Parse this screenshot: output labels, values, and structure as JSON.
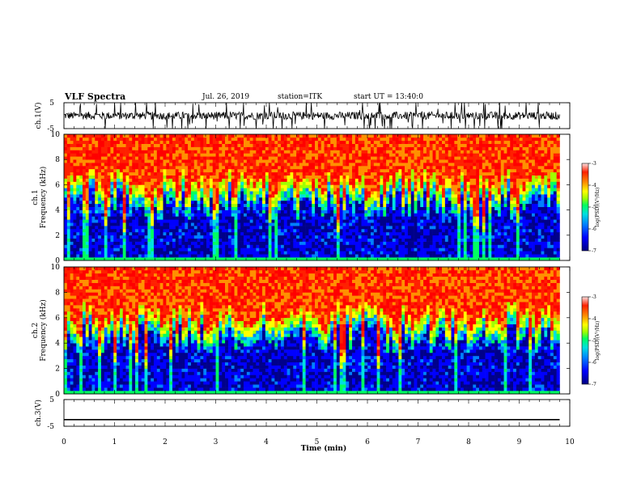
{
  "header": {
    "title": "VLF Spectra",
    "date": "Jul. 26, 2019",
    "station": "station=ITK",
    "start": "start UT = 13:40:0"
  },
  "chart_data": [
    {
      "type": "line",
      "name": "ch1-waveform",
      "ylabel": "ch.1(V)",
      "ylim": [
        -5,
        5
      ],
      "yticks": [
        "5",
        "-5"
      ],
      "xlim": [
        0,
        10
      ],
      "trace_level": 0,
      "noise_amplitude": 0.5,
      "spike_count": 60,
      "trace_end": 9.8
    },
    {
      "type": "heatmap",
      "name": "ch1-spectrogram",
      "ylabel": "ch.1\nFrequency (kHz)",
      "ylim": [
        0,
        10
      ],
      "yticks": [
        "0",
        "2",
        "4",
        "6",
        "8",
        "10"
      ],
      "xlim": [
        0,
        10
      ],
      "data_end_min": 9.8,
      "colorbar": {
        "label": "log(PSD)(V²/Hz)",
        "range": [
          -7,
          -3
        ],
        "ticks": [
          "-3",
          "-4",
          "-5",
          "-6",
          "-7"
        ]
      }
    },
    {
      "type": "heatmap",
      "name": "ch2-spectrogram",
      "ylabel": "ch.2\nFrequency (kHz)",
      "ylim": [
        0,
        10
      ],
      "yticks": [
        "0",
        "2",
        "4",
        "6",
        "8",
        "10"
      ],
      "xlim": [
        0,
        10
      ],
      "data_end_min": 9.8,
      "colorbar": {
        "label": "log(PSD)(V²/Hz)",
        "range": [
          -7,
          -3
        ],
        "ticks": [
          "-3",
          "-4",
          "-5",
          "-6",
          "-7"
        ]
      }
    },
    {
      "type": "line",
      "name": "ch3-waveform",
      "ylabel": "ch.3(V)",
      "ylim": [
        -5,
        5
      ],
      "yticks": [
        "5",
        "-5"
      ],
      "xlim": [
        0,
        10
      ],
      "trace_level": -2.5,
      "trace_end": 9.8
    }
  ],
  "xaxis": {
    "label": "Time (min)",
    "ticks": [
      "0",
      "1",
      "2",
      "3",
      "4",
      "5",
      "6",
      "7",
      "8",
      "9",
      "10"
    ]
  },
  "colors": {
    "colormap": [
      "#00008a",
      "#0000ff",
      "#0080ff",
      "#00e0e0",
      "#00ff60",
      "#a0ff00",
      "#ffff00",
      "#ff9000",
      "#ff2000",
      "#ff0000"
    ]
  }
}
